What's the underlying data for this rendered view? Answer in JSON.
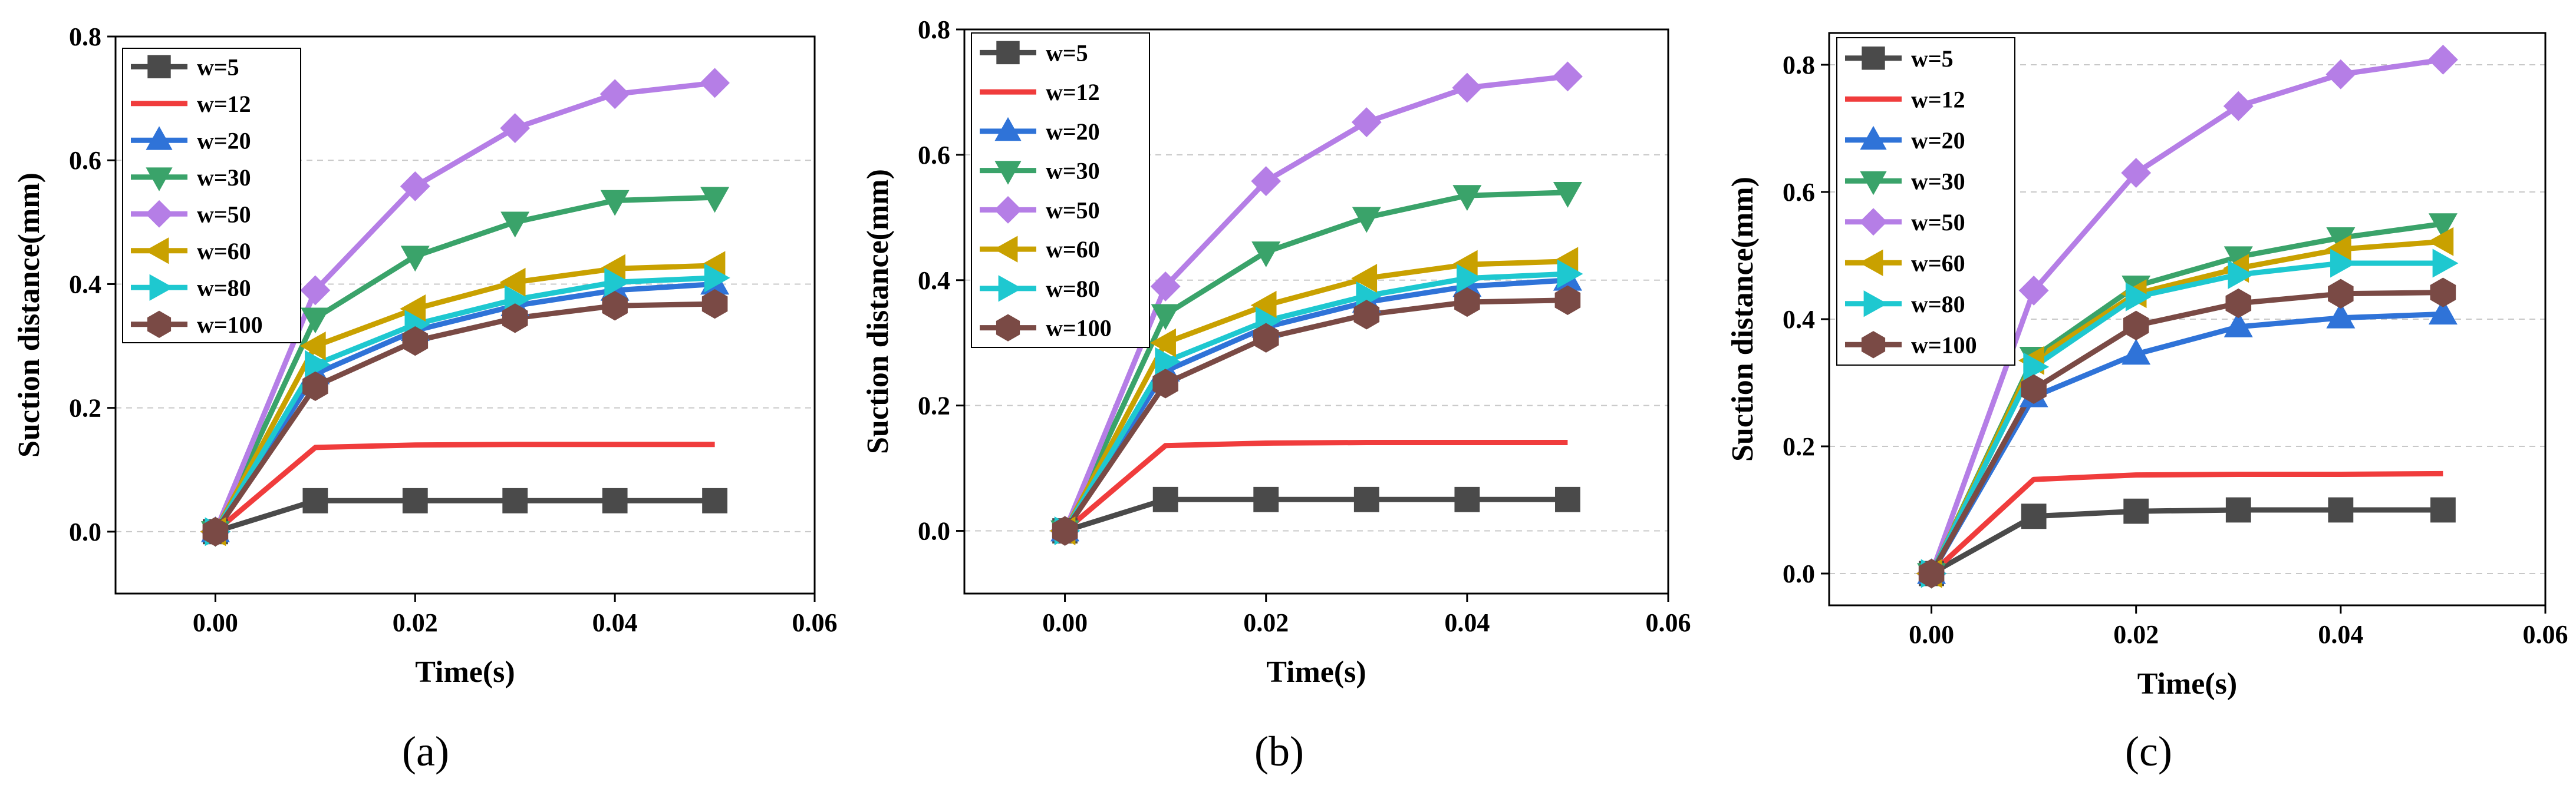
{
  "figure": {
    "panels": [
      {
        "label": "(a)"
      },
      {
        "label": "(b)"
      },
      {
        "label": "(c)"
      }
    ]
  },
  "chart_data": [
    {
      "type": "line",
      "panel": "(a)",
      "xlabel": "Time(s)",
      "ylabel": "Suction distance(mm)",
      "xlim": [
        -0.01,
        0.06
      ],
      "ylim": [
        -0.1,
        0.8
      ],
      "xticks": [
        "0.00",
        "0.02",
        "0.04",
        "0.06"
      ],
      "yticks": [
        "0.0",
        "0.2",
        "0.4",
        "0.6",
        "0.8"
      ],
      "grid": "horizontal dashed",
      "legend_position": "top-left",
      "x": [
        0,
        0.01,
        0.02,
        0.03,
        0.04,
        0.05
      ],
      "series": [
        {
          "name": "w=5",
          "color": "#4a4a4a",
          "marker": "square",
          "values": [
            0,
            0.05,
            0.05,
            0.05,
            0.05,
            0.05
          ]
        },
        {
          "name": "w=12",
          "color": "#f03c3c",
          "marker": "circle",
          "values": [
            0,
            0.136,
            0.14,
            0.141,
            0.141,
            0.141
          ]
        },
        {
          "name": "w=20",
          "color": "#2f73d8",
          "marker": "triangle-up",
          "values": [
            0,
            0.255,
            0.325,
            0.365,
            0.39,
            0.4
          ]
        },
        {
          "name": "w=30",
          "color": "#3aa36a",
          "marker": "triangle-down",
          "values": [
            0,
            0.345,
            0.445,
            0.5,
            0.535,
            0.54
          ]
        },
        {
          "name": "w=50",
          "color": "#b57ee6",
          "marker": "diamond",
          "values": [
            0,
            0.39,
            0.558,
            0.652,
            0.707,
            0.725
          ]
        },
        {
          "name": "w=60",
          "color": "#c9a100",
          "marker": "triangle-left",
          "values": [
            0,
            0.3,
            0.36,
            0.403,
            0.425,
            0.43
          ]
        },
        {
          "name": "w=80",
          "color": "#1ec8d0",
          "marker": "triangle-right",
          "values": [
            0,
            0.27,
            0.335,
            0.375,
            0.403,
            0.41
          ]
        },
        {
          "name": "w=100",
          "color": "#7a4a45",
          "marker": "hexagon",
          "values": [
            0,
            0.235,
            0.308,
            0.345,
            0.365,
            0.368
          ]
        }
      ]
    },
    {
      "type": "line",
      "panel": "(b)",
      "xlabel": "Time(s)",
      "ylabel": "Suction distance(mm)",
      "xlim": [
        -0.01,
        0.06
      ],
      "ylim": [
        -0.1,
        0.8
      ],
      "xticks": [
        "0.00",
        "0.02",
        "0.04",
        "0.06"
      ],
      "yticks": [
        "0.0",
        "0.2",
        "0.4",
        "0.6",
        "0.8"
      ],
      "grid": "horizontal dashed",
      "legend_position": "top-left",
      "x": [
        0,
        0.01,
        0.02,
        0.03,
        0.04,
        0.05
      ],
      "series": [
        {
          "name": "w=5",
          "color": "#4a4a4a",
          "marker": "square",
          "values": [
            0,
            0.05,
            0.05,
            0.05,
            0.05,
            0.05
          ]
        },
        {
          "name": "w=12",
          "color": "#f03c3c",
          "marker": "circle",
          "values": [
            0,
            0.136,
            0.14,
            0.141,
            0.141,
            0.141
          ]
        },
        {
          "name": "w=20",
          "color": "#2f73d8",
          "marker": "triangle-up",
          "values": [
            0,
            0.255,
            0.325,
            0.365,
            0.39,
            0.4
          ]
        },
        {
          "name": "w=30",
          "color": "#3aa36a",
          "marker": "triangle-down",
          "values": [
            0,
            0.345,
            0.445,
            0.5,
            0.535,
            0.54
          ]
        },
        {
          "name": "w=50",
          "color": "#b57ee6",
          "marker": "diamond",
          "values": [
            0,
            0.39,
            0.558,
            0.652,
            0.707,
            0.725
          ]
        },
        {
          "name": "w=60",
          "color": "#c9a100",
          "marker": "triangle-left",
          "values": [
            0,
            0.3,
            0.36,
            0.403,
            0.425,
            0.43
          ]
        },
        {
          "name": "w=80",
          "color": "#1ec8d0",
          "marker": "triangle-right",
          "values": [
            0,
            0.27,
            0.335,
            0.375,
            0.403,
            0.41
          ]
        },
        {
          "name": "w=100",
          "color": "#7a4a45",
          "marker": "hexagon",
          "values": [
            0,
            0.235,
            0.308,
            0.345,
            0.365,
            0.368
          ]
        }
      ]
    },
    {
      "type": "line",
      "panel": "(c)",
      "xlabel": "Time(s)",
      "ylabel": "Suction distance(mm)",
      "xlim": [
        -0.01,
        0.06
      ],
      "ylim": [
        -0.05,
        0.85
      ],
      "xticks": [
        "0.00",
        "0.02",
        "0.04",
        "0.06"
      ],
      "yticks": [
        "0.0",
        "0.2",
        "0.4",
        "0.6",
        "0.8"
      ],
      "grid": "horizontal dashed",
      "legend_position": "top-left",
      "x": [
        0,
        0.01,
        0.02,
        0.03,
        0.04,
        0.05
      ],
      "series": [
        {
          "name": "w=5",
          "color": "#4a4a4a",
          "marker": "square",
          "values": [
            0,
            0.09,
            0.098,
            0.1,
            0.1,
            0.1
          ]
        },
        {
          "name": "w=12",
          "color": "#f03c3c",
          "marker": "circle",
          "values": [
            0,
            0.148,
            0.155,
            0.156,
            0.156,
            0.157
          ]
        },
        {
          "name": "w=20",
          "color": "#2f73d8",
          "marker": "triangle-up",
          "values": [
            0,
            0.278,
            0.345,
            0.388,
            0.402,
            0.408
          ]
        },
        {
          "name": "w=30",
          "color": "#3aa36a",
          "marker": "triangle-down",
          "values": [
            0,
            0.34,
            0.452,
            0.498,
            0.528,
            0.55
          ]
        },
        {
          "name": "w=50",
          "color": "#b57ee6",
          "marker": "diamond",
          "values": [
            0,
            0.445,
            0.63,
            0.735,
            0.785,
            0.808
          ]
        },
        {
          "name": "w=60",
          "color": "#c9a100",
          "marker": "triangle-left",
          "values": [
            0,
            0.335,
            0.44,
            0.48,
            0.51,
            0.522
          ]
        },
        {
          "name": "w=80",
          "color": "#1ec8d0",
          "marker": "triangle-right",
          "values": [
            0,
            0.325,
            0.435,
            0.47,
            0.488,
            0.488
          ]
        },
        {
          "name": "w=100",
          "color": "#7a4a45",
          "marker": "hexagon",
          "values": [
            0,
            0.29,
            0.39,
            0.425,
            0.44,
            0.442
          ]
        }
      ]
    }
  ]
}
